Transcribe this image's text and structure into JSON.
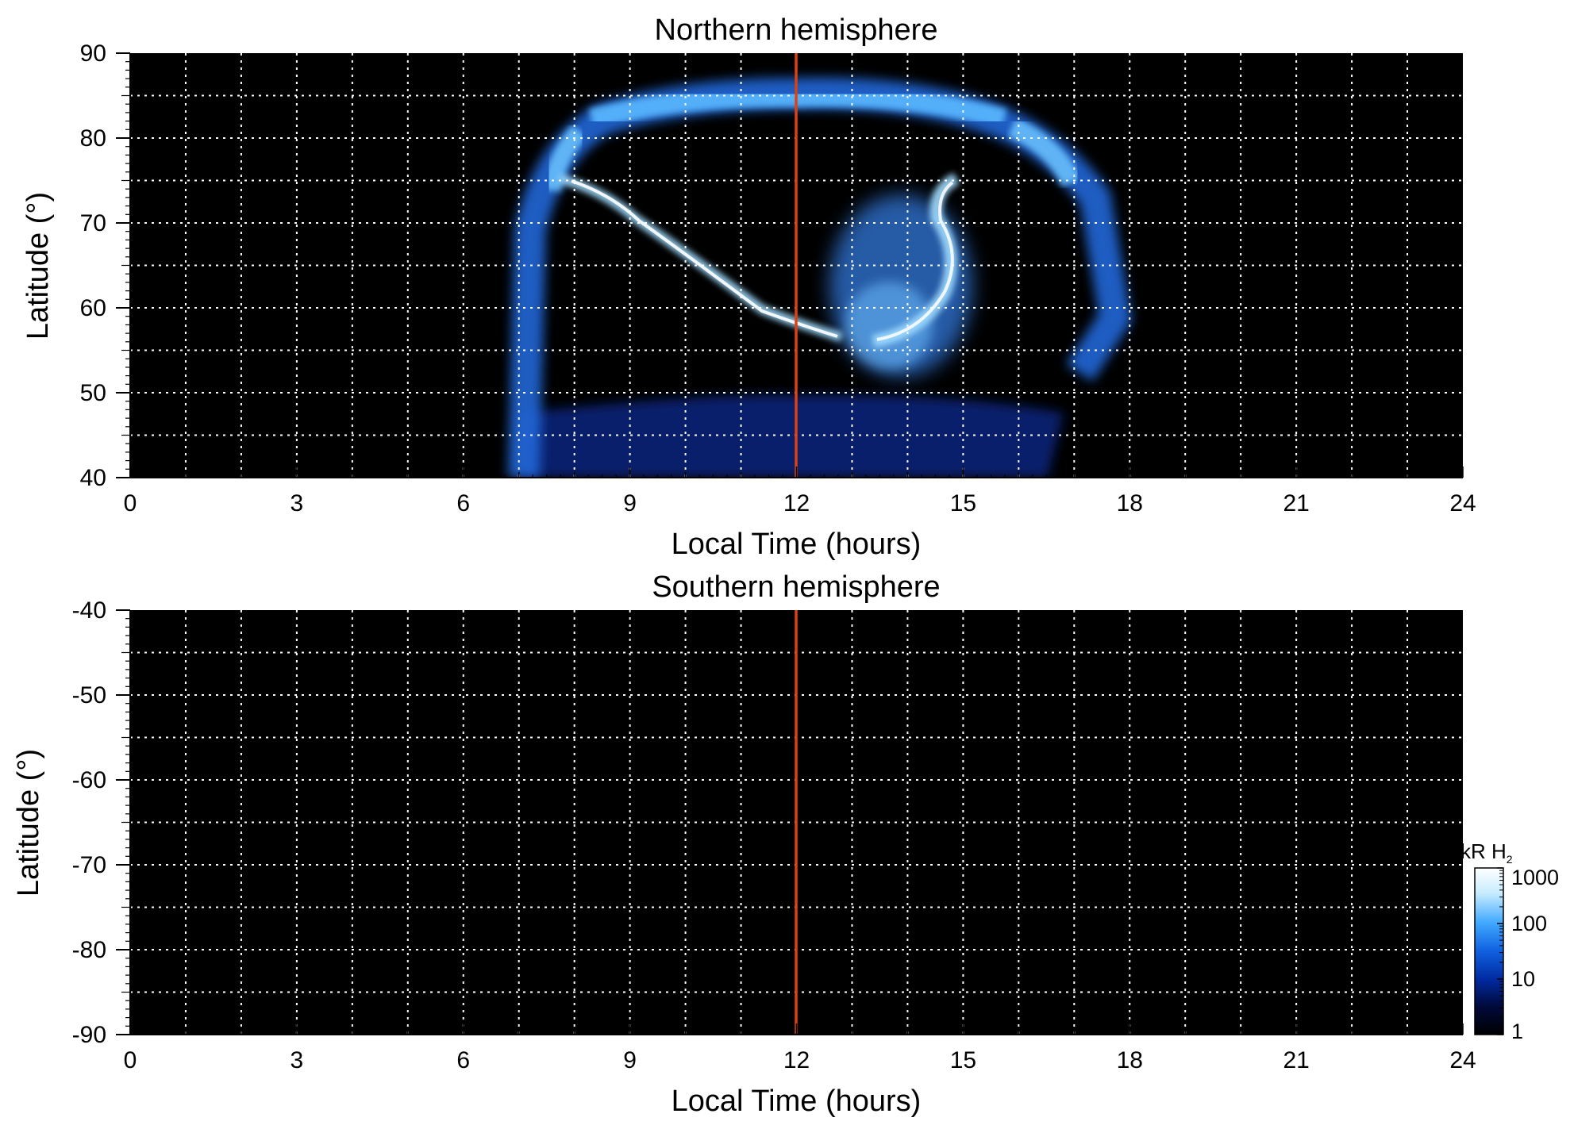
{
  "chart_data": [
    {
      "type": "heatmap",
      "title": "Northern hemisphere",
      "xlabel": "Local Time (hours)",
      "ylabel": "Latitude (°)",
      "xlim": [
        0,
        24
      ],
      "ylim": [
        40,
        90
      ],
      "xticks": [
        "0",
        "3",
        "6",
        "9",
        "12",
        "15",
        "18",
        "21",
        "24"
      ],
      "yticks": [
        "40",
        "50",
        "60",
        "70",
        "80",
        "90"
      ],
      "grid": true,
      "reference_line": {
        "x": 12,
        "color": "#e04010"
      },
      "features": {
        "auroral_oval_band": {
          "lt_range": [
            7,
            18
          ],
          "lat_range": [
            40,
            85
          ],
          "peak_lat": 84
        },
        "bright_arc": [
          [
            8.3,
            75
          ],
          [
            9,
            73
          ],
          [
            10,
            67
          ],
          [
            11,
            63
          ],
          [
            12,
            59
          ],
          [
            12.7,
            57
          ]
        ],
        "bright_spiral": [
          [
            14.6,
            74
          ],
          [
            15,
            69
          ],
          [
            14.8,
            63
          ],
          [
            14.2,
            58
          ],
          [
            13.6,
            56
          ]
        ],
        "diffuse_patch": {
          "lt_range": [
            13,
            15
          ],
          "lat_range": [
            50,
            72
          ]
        },
        "noise_floor": {
          "lt_range": [
            7,
            17
          ],
          "lat_range": [
            40,
            52
          ]
        }
      }
    },
    {
      "type": "heatmap",
      "title": "Southern hemisphere",
      "xlabel": "Local Time (hours)",
      "ylabel": "Latitude (°)",
      "xlim": [
        0,
        24
      ],
      "ylim": [
        -90,
        -40
      ],
      "xticks": [
        "0",
        "3",
        "6",
        "9",
        "12",
        "15",
        "18",
        "21",
        "24"
      ],
      "yticks": [
        "-40",
        "-50",
        "-60",
        "-70",
        "-80",
        "-90"
      ],
      "grid": true,
      "reference_line": {
        "x": 12,
        "color": "#e04010"
      },
      "features": {}
    }
  ],
  "colorbar": {
    "label": "kR H",
    "label_sub": "2",
    "scale": "log",
    "ticks": [
      "1",
      "10",
      "100",
      "1000"
    ],
    "colors": [
      "#000000",
      "#000a3c",
      "#002aa0",
      "#1060e0",
      "#40a8ff",
      "#c8ecff",
      "#ffffff"
    ]
  }
}
